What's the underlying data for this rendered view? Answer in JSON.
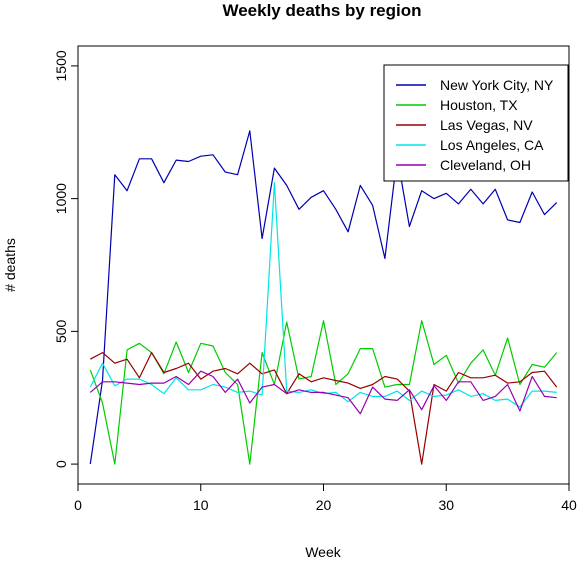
{
  "chart_data": {
    "type": "line",
    "title": "Weekly deaths by region",
    "xlabel": "Week",
    "ylabel": "# deaths",
    "xlim": [
      0,
      40
    ],
    "ylim": [
      -75,
      1575
    ],
    "xticks": [
      0,
      10,
      20,
      30,
      40
    ],
    "yticks": [
      0,
      500,
      1000,
      1500
    ],
    "grid": false,
    "legend_position": "top-right",
    "x": [
      1,
      2,
      3,
      4,
      5,
      6,
      7,
      8,
      9,
      10,
      11,
      12,
      13,
      14,
      15,
      16,
      17,
      18,
      19,
      20,
      21,
      22,
      23,
      24,
      25,
      26,
      27,
      28,
      29,
      30,
      31,
      32,
      33,
      34,
      35,
      36,
      37,
      38,
      39
    ],
    "series": [
      {
        "name": "New York City, NY",
        "color": "#0000b0",
        "values": [
          0,
          315,
          1090,
          1030,
          1150,
          1150,
          1060,
          1145,
          1140,
          1160,
          1165,
          1100,
          1090,
          1255,
          850,
          1115,
          1050,
          960,
          1005,
          1030,
          960,
          875,
          1050,
          975,
          775,
          1160,
          895,
          1030,
          1000,
          1020,
          980,
          1035,
          980,
          1035,
          920,
          910,
          1025,
          940,
          985
        ]
      },
      {
        "name": "Houston, TX",
        "color": "#00cc00",
        "values": [
          355,
          230,
          0,
          430,
          455,
          420,
          340,
          460,
          345,
          455,
          445,
          345,
          300,
          0,
          420,
          300,
          535,
          320,
          330,
          540,
          300,
          340,
          435,
          435,
          290,
          300,
          300,
          540,
          375,
          410,
          305,
          380,
          430,
          335,
          475,
          300,
          375,
          365,
          420
        ]
      },
      {
        "name": "Las Vegas, NV",
        "color": "#990000",
        "values": [
          395,
          420,
          380,
          395,
          325,
          420,
          345,
          360,
          380,
          320,
          350,
          360,
          340,
          380,
          340,
          355,
          265,
          340,
          310,
          325,
          315,
          305,
          285,
          300,
          330,
          320,
          275,
          0,
          300,
          275,
          345,
          325,
          325,
          335,
          305,
          310,
          345,
          350,
          290
        ]
      },
      {
        "name": "Los Angeles, CA",
        "color": "#00e5e5",
        "values": [
          290,
          380,
          295,
          320,
          320,
          300,
          265,
          325,
          280,
          280,
          300,
          290,
          270,
          275,
          260,
          1060,
          275,
          270,
          280,
          265,
          270,
          235,
          270,
          255,
          255,
          275,
          240,
          275,
          255,
          260,
          280,
          255,
          265,
          240,
          245,
          215,
          275,
          275,
          270
        ]
      },
      {
        "name": "Cleveland, OH",
        "color": "#9900b0",
        "values": [
          270,
          310,
          310,
          305,
          300,
          305,
          305,
          330,
          300,
          350,
          330,
          270,
          320,
          230,
          290,
          300,
          265,
          280,
          270,
          270,
          260,
          250,
          190,
          290,
          245,
          240,
          280,
          205,
          295,
          240,
          310,
          310,
          240,
          255,
          300,
          200,
          330,
          255,
          250
        ]
      }
    ]
  }
}
